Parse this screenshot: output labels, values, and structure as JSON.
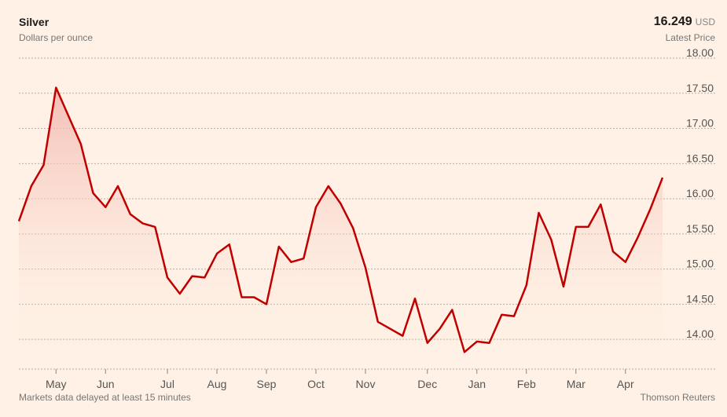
{
  "header": {
    "title": "Silver",
    "subtitle": "Dollars per ounce",
    "price": "16.249",
    "price_unit": "USD",
    "price_label": "Latest Price"
  },
  "footer": {
    "note": "Markets data delayed at least 15 minutes",
    "source": "Thomson Reuters"
  },
  "colors": {
    "line": "#c00000",
    "area_top": "#f2b5ad",
    "grid": "#b8b0a6",
    "background": "#fff1e5"
  },
  "chart_data": {
    "type": "area",
    "title": "Silver",
    "subtitle": "Dollars per ounce",
    "ylim": [
      13.6,
      18.0
    ],
    "y_ticks": [
      "18.00",
      "17.50",
      "17.00",
      "16.50",
      "16.00",
      "15.50",
      "15.00",
      "14.50",
      "14.00"
    ],
    "x_ticks": [
      {
        "label": "May",
        "week": 3
      },
      {
        "label": "Jun",
        "week": 7
      },
      {
        "label": "Jul",
        "week": 12
      },
      {
        "label": "Aug",
        "week": 16
      },
      {
        "label": "Sep",
        "week": 20
      },
      {
        "label": "Oct",
        "week": 24
      },
      {
        "label": "Nov",
        "week": 28
      },
      {
        "label": "Dec",
        "week": 33
      },
      {
        "label": "Jan",
        "week": 37
      },
      {
        "label": "Feb",
        "week": 41
      },
      {
        "label": "Mar",
        "week": 45
      },
      {
        "label": "Apr",
        "week": 49
      }
    ],
    "grid": true,
    "series": [
      {
        "values": [
          15.68,
          16.18,
          16.48,
          17.58,
          17.18,
          16.78,
          16.08,
          15.88,
          16.18,
          15.78,
          15.65,
          15.6,
          14.88,
          14.65,
          14.9,
          14.88,
          15.22,
          15.35,
          14.6,
          14.6,
          14.5,
          15.32,
          15.1,
          15.15,
          15.88,
          16.18,
          15.93,
          15.58,
          15.02,
          14.25,
          14.15,
          14.05,
          14.58,
          13.95,
          14.15,
          14.42,
          13.82,
          13.97,
          13.95,
          14.35,
          14.33,
          14.77,
          15.8,
          15.42,
          14.75,
          15.6,
          15.6,
          15.92,
          15.25,
          15.1,
          15.45,
          15.85,
          16.3
        ]
      }
    ]
  }
}
